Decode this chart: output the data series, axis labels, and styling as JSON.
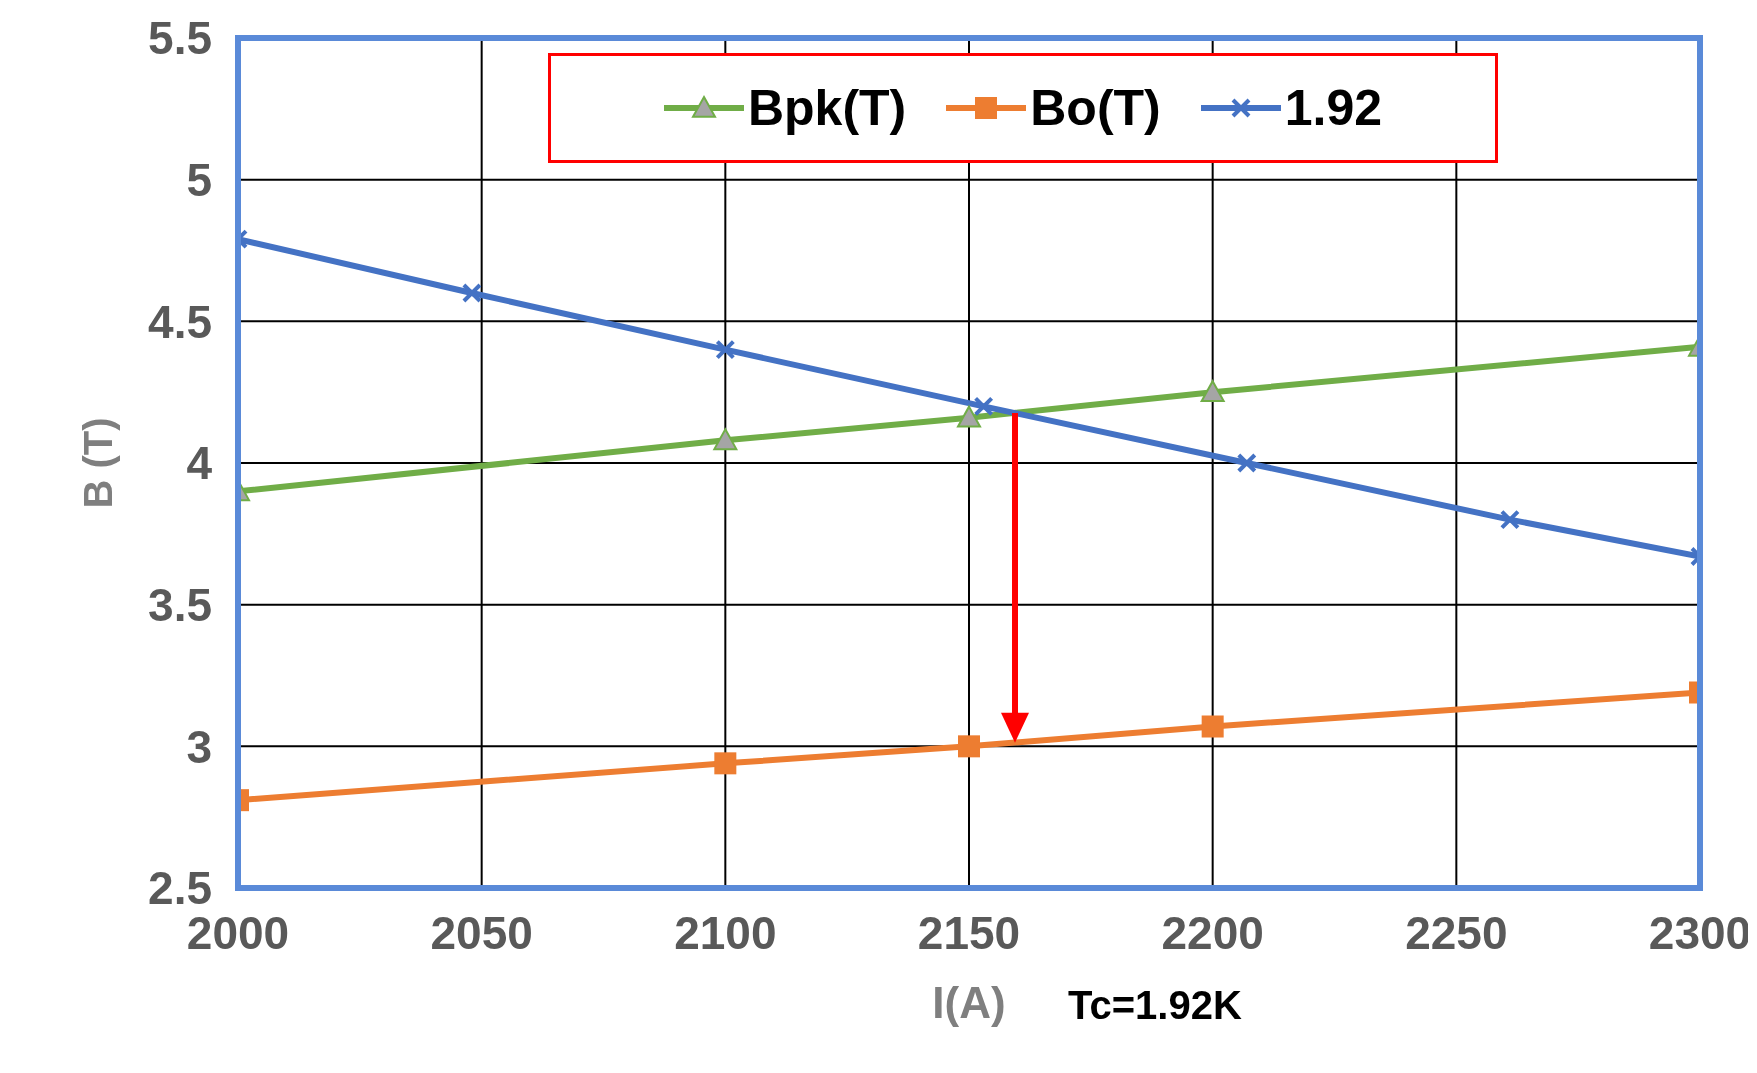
{
  "chart_data": {
    "type": "line",
    "xlabel": "I(A)",
    "ylabel": "B (T)",
    "xlim": [
      2000,
      2300
    ],
    "xticks": [
      2000,
      2050,
      2100,
      2150,
      2200,
      2250,
      2300
    ],
    "ylim": [
      2.5,
      5.5
    ],
    "yticks": [
      2.5,
      3,
      3.5,
      4,
      4.5,
      5,
      5.5
    ],
    "grid": true,
    "legend": "top",
    "series": [
      {
        "name": "Bpk(T)",
        "color": "#70ad47",
        "marker": "triangle",
        "x": [
          2000,
          2100,
          2150,
          2200,
          2300
        ],
        "values": [
          3.9,
          4.08,
          4.16,
          4.25,
          4.41
        ]
      },
      {
        "name": "Bo(T)",
        "color": "#ed7d31",
        "marker": "square",
        "x": [
          2000,
          2100,
          2150,
          2200,
          2300
        ],
        "values": [
          2.81,
          2.94,
          3.0,
          3.07,
          3.19
        ]
      },
      {
        "name": "1.92",
        "color": "#4472c4",
        "marker": "cross",
        "x": [
          2000,
          2048,
          2100,
          2153,
          2207,
          2261,
          2300
        ],
        "values": [
          4.79,
          4.6,
          4.4,
          4.2,
          4.0,
          3.8,
          3.67
        ]
      }
    ],
    "annotations": [
      "Tc=1.92K"
    ]
  }
}
